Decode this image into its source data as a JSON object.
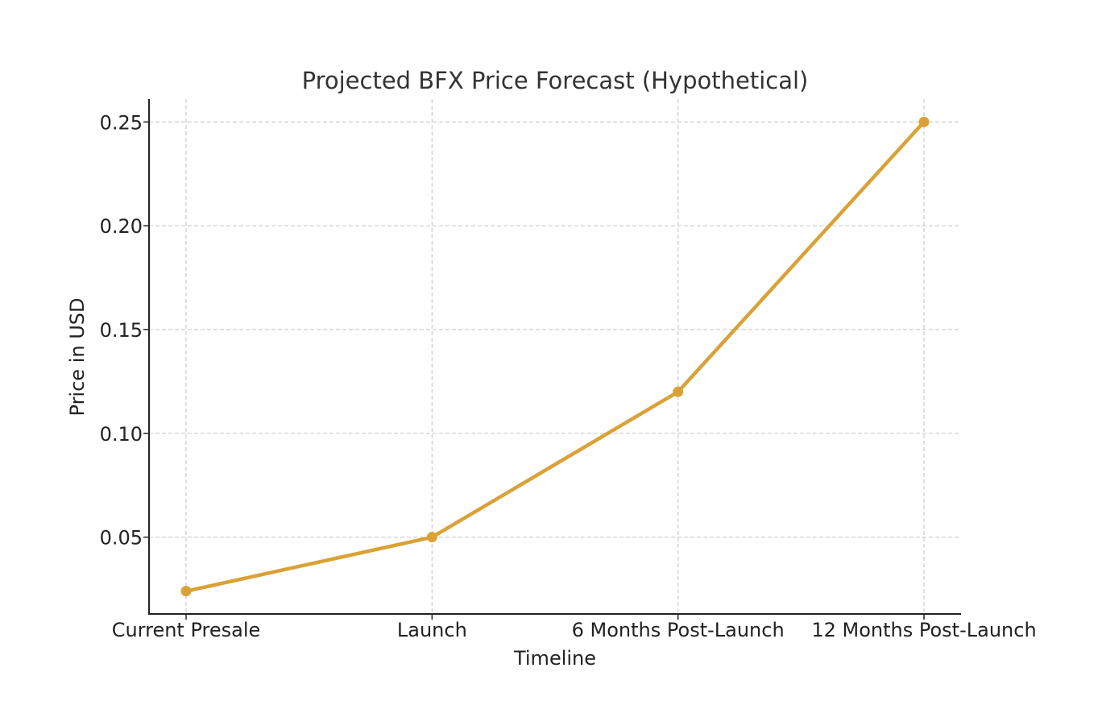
{
  "chart_data": {
    "type": "line",
    "title": "Projected BFX Price Forecast (Hypothetical)",
    "xlabel": "Timeline",
    "ylabel": "Price in USD",
    "categories": [
      "Current Presale",
      "Launch",
      "6 Months Post-Launch",
      "12 Months Post-Launch"
    ],
    "series": [
      {
        "values": [
          0.024,
          0.05,
          0.12,
          0.25
        ],
        "color": "#DAA236"
      }
    ],
    "yticks": [
      0.05,
      0.1,
      0.15,
      0.2,
      0.25
    ],
    "ytick_labels": [
      "0.05",
      "0.10",
      "0.15",
      "0.20",
      "0.25"
    ],
    "ylim": [
      0.013,
      0.261
    ],
    "grid": true,
    "markers": true
  }
}
